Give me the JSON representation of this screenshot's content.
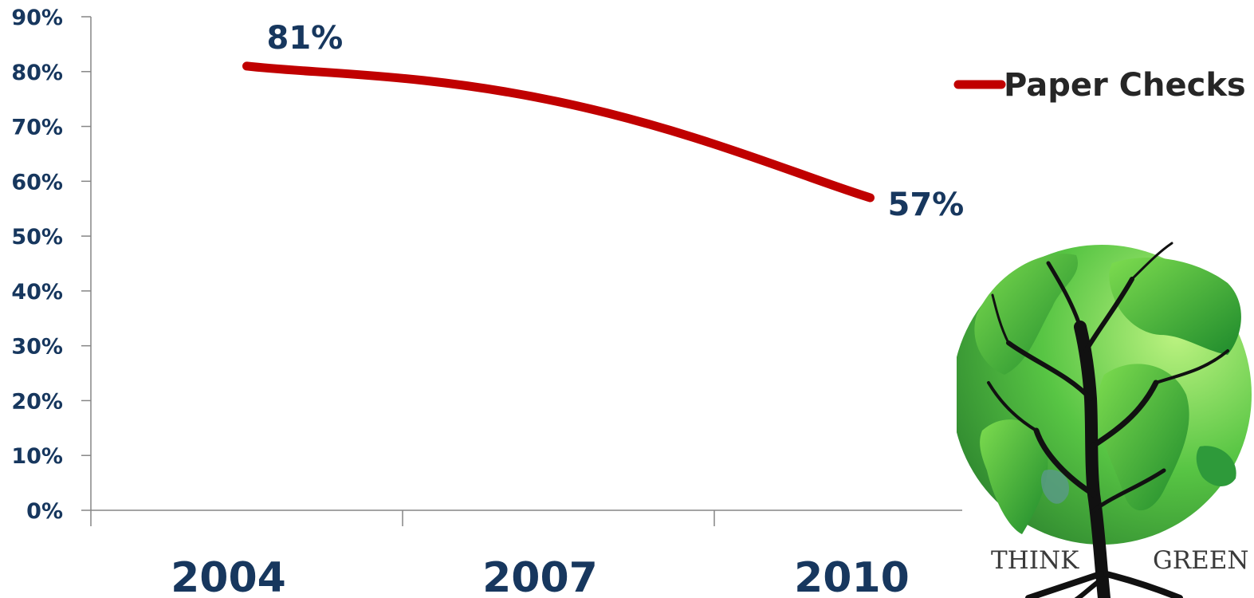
{
  "chart_data": {
    "type": "line",
    "categories": [
      "2004",
      "2007",
      "2010"
    ],
    "series": [
      {
        "name": "Paper Checks",
        "values": [
          81,
          74.5,
          57
        ],
        "color": "#c00000"
      }
    ],
    "data_labels": [
      {
        "index": 0,
        "text": "81%"
      },
      {
        "index": 2,
        "text": "57%"
      }
    ],
    "yticks": [
      "0%",
      "10%",
      "20%",
      "30%",
      "40%",
      "50%",
      "60%",
      "70%",
      "80%",
      "90%"
    ],
    "ylim": [
      0,
      90
    ],
    "grid": false,
    "smooth": true,
    "legend_position": "right"
  },
  "logo": {
    "word_left": "THINK",
    "word_right": "GREEN",
    "icon": "tree-globe-icon"
  },
  "colors": {
    "line": "#c00000",
    "labels": "#17375e",
    "axis": "#868686",
    "legend_text": "#262626"
  }
}
